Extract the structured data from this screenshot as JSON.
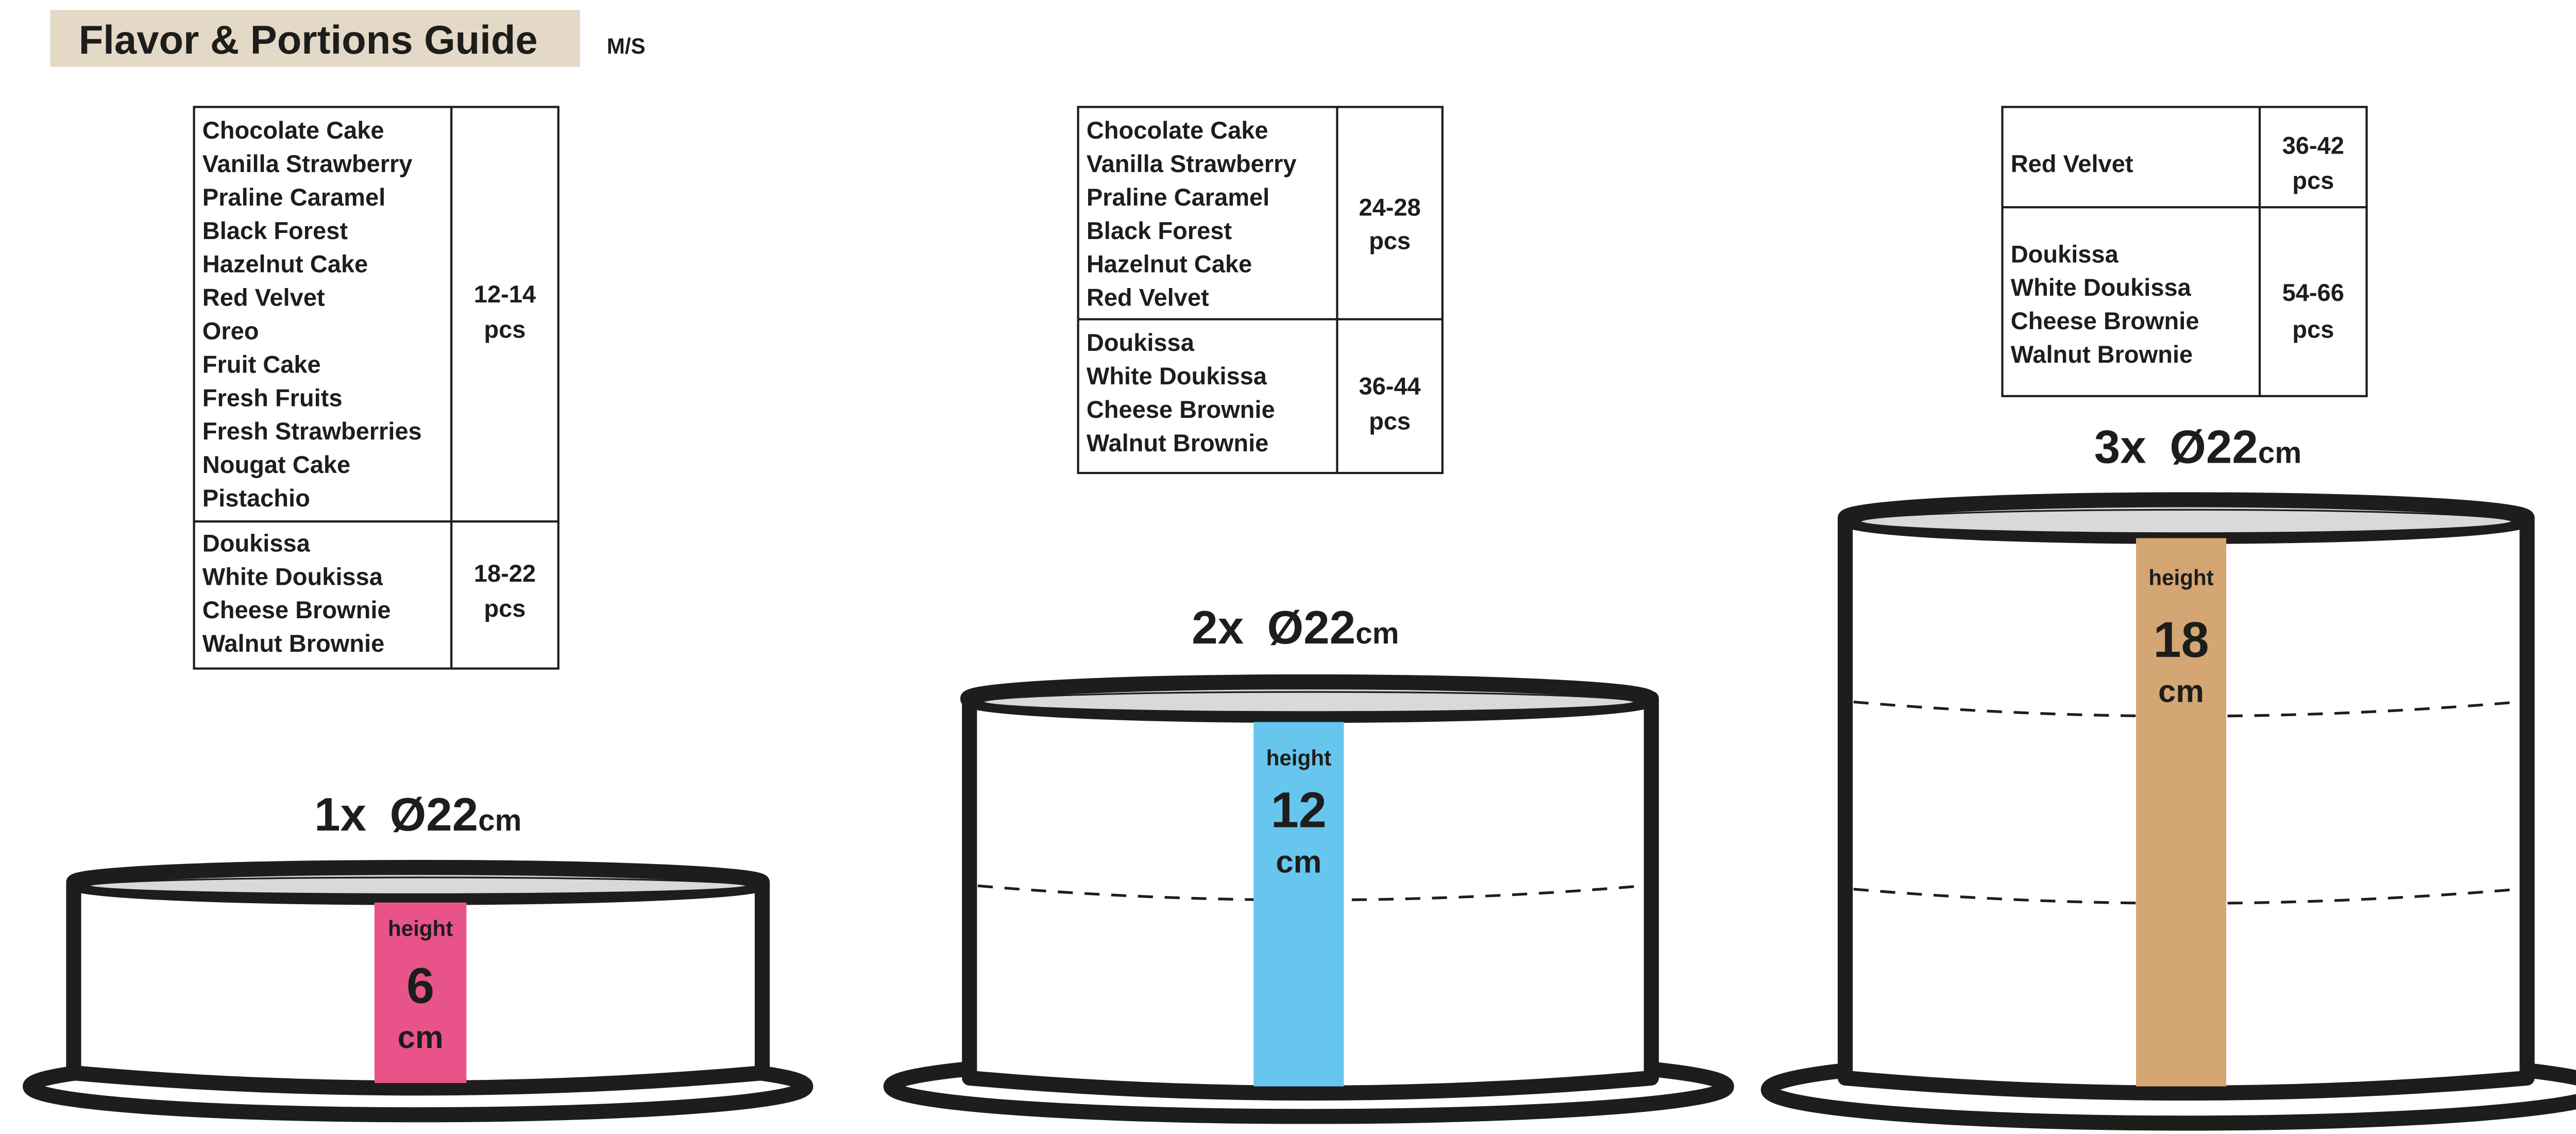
{
  "header": {
    "title": "Flavor & Portions Guide",
    "code": "M/S",
    "title_bg": "#e4d8c6"
  },
  "tables": [
    {
      "sections": [
        {
          "flavors": [
            "Chocolate Cake",
            "Vanilla Strawberry",
            "Praline Caramel",
            "Black Forest",
            "Hazelnut Cake",
            "Red Velvet",
            "Oreo",
            "Fruit Cake",
            "Fresh Fruits",
            "Fresh Strawberries",
            "Nougat Cake",
            "Pistachio"
          ],
          "portion": "12-14",
          "unit": "pcs"
        },
        {
          "flavors": [
            "Doukissa",
            "White Doukissa",
            "Cheese Brownie",
            "Walnut Brownie"
          ],
          "portion": "18-22",
          "unit": "pcs"
        }
      ]
    },
    {
      "sections": [
        {
          "flavors": [
            "Chocolate Cake",
            "Vanilla Strawberry",
            "Praline Caramel",
            "Black Forest",
            "Hazelnut Cake",
            "Red Velvet"
          ],
          "portion": "24-28",
          "unit": "pcs"
        },
        {
          "flavors": [
            "Doukissa",
            "White Doukissa",
            "Cheese Brownie",
            "Walnut Brownie"
          ],
          "portion": "36-44",
          "unit": "pcs"
        }
      ]
    },
    {
      "sections": [
        {
          "flavors": [
            "Red Velvet"
          ],
          "portion": "36-42",
          "unit": "pcs"
        },
        {
          "flavors": [
            "Doukissa",
            "White Doukissa",
            "Cheese Brownie",
            "Walnut Brownie"
          ],
          "portion": "54-66",
          "unit": "pcs"
        }
      ]
    }
  ],
  "cakes": [
    {
      "layers_label": "1x",
      "diameter": "Ø22",
      "diameter_unit": "cm",
      "height_label": "height",
      "height_value": "6",
      "height_unit": "cm",
      "layers": 1,
      "color": "#e8538a"
    },
    {
      "layers_label": "2x",
      "diameter": "Ø22",
      "diameter_unit": "cm",
      "height_label": "height",
      "height_value": "12",
      "height_unit": "cm",
      "layers": 2,
      "color": "#66c6ee"
    },
    {
      "layers_label": "3x",
      "diameter": "Ø22",
      "diameter_unit": "cm",
      "height_label": "height",
      "height_value": "18",
      "height_unit": "cm",
      "layers": 3,
      "color": "#d4a673"
    }
  ]
}
